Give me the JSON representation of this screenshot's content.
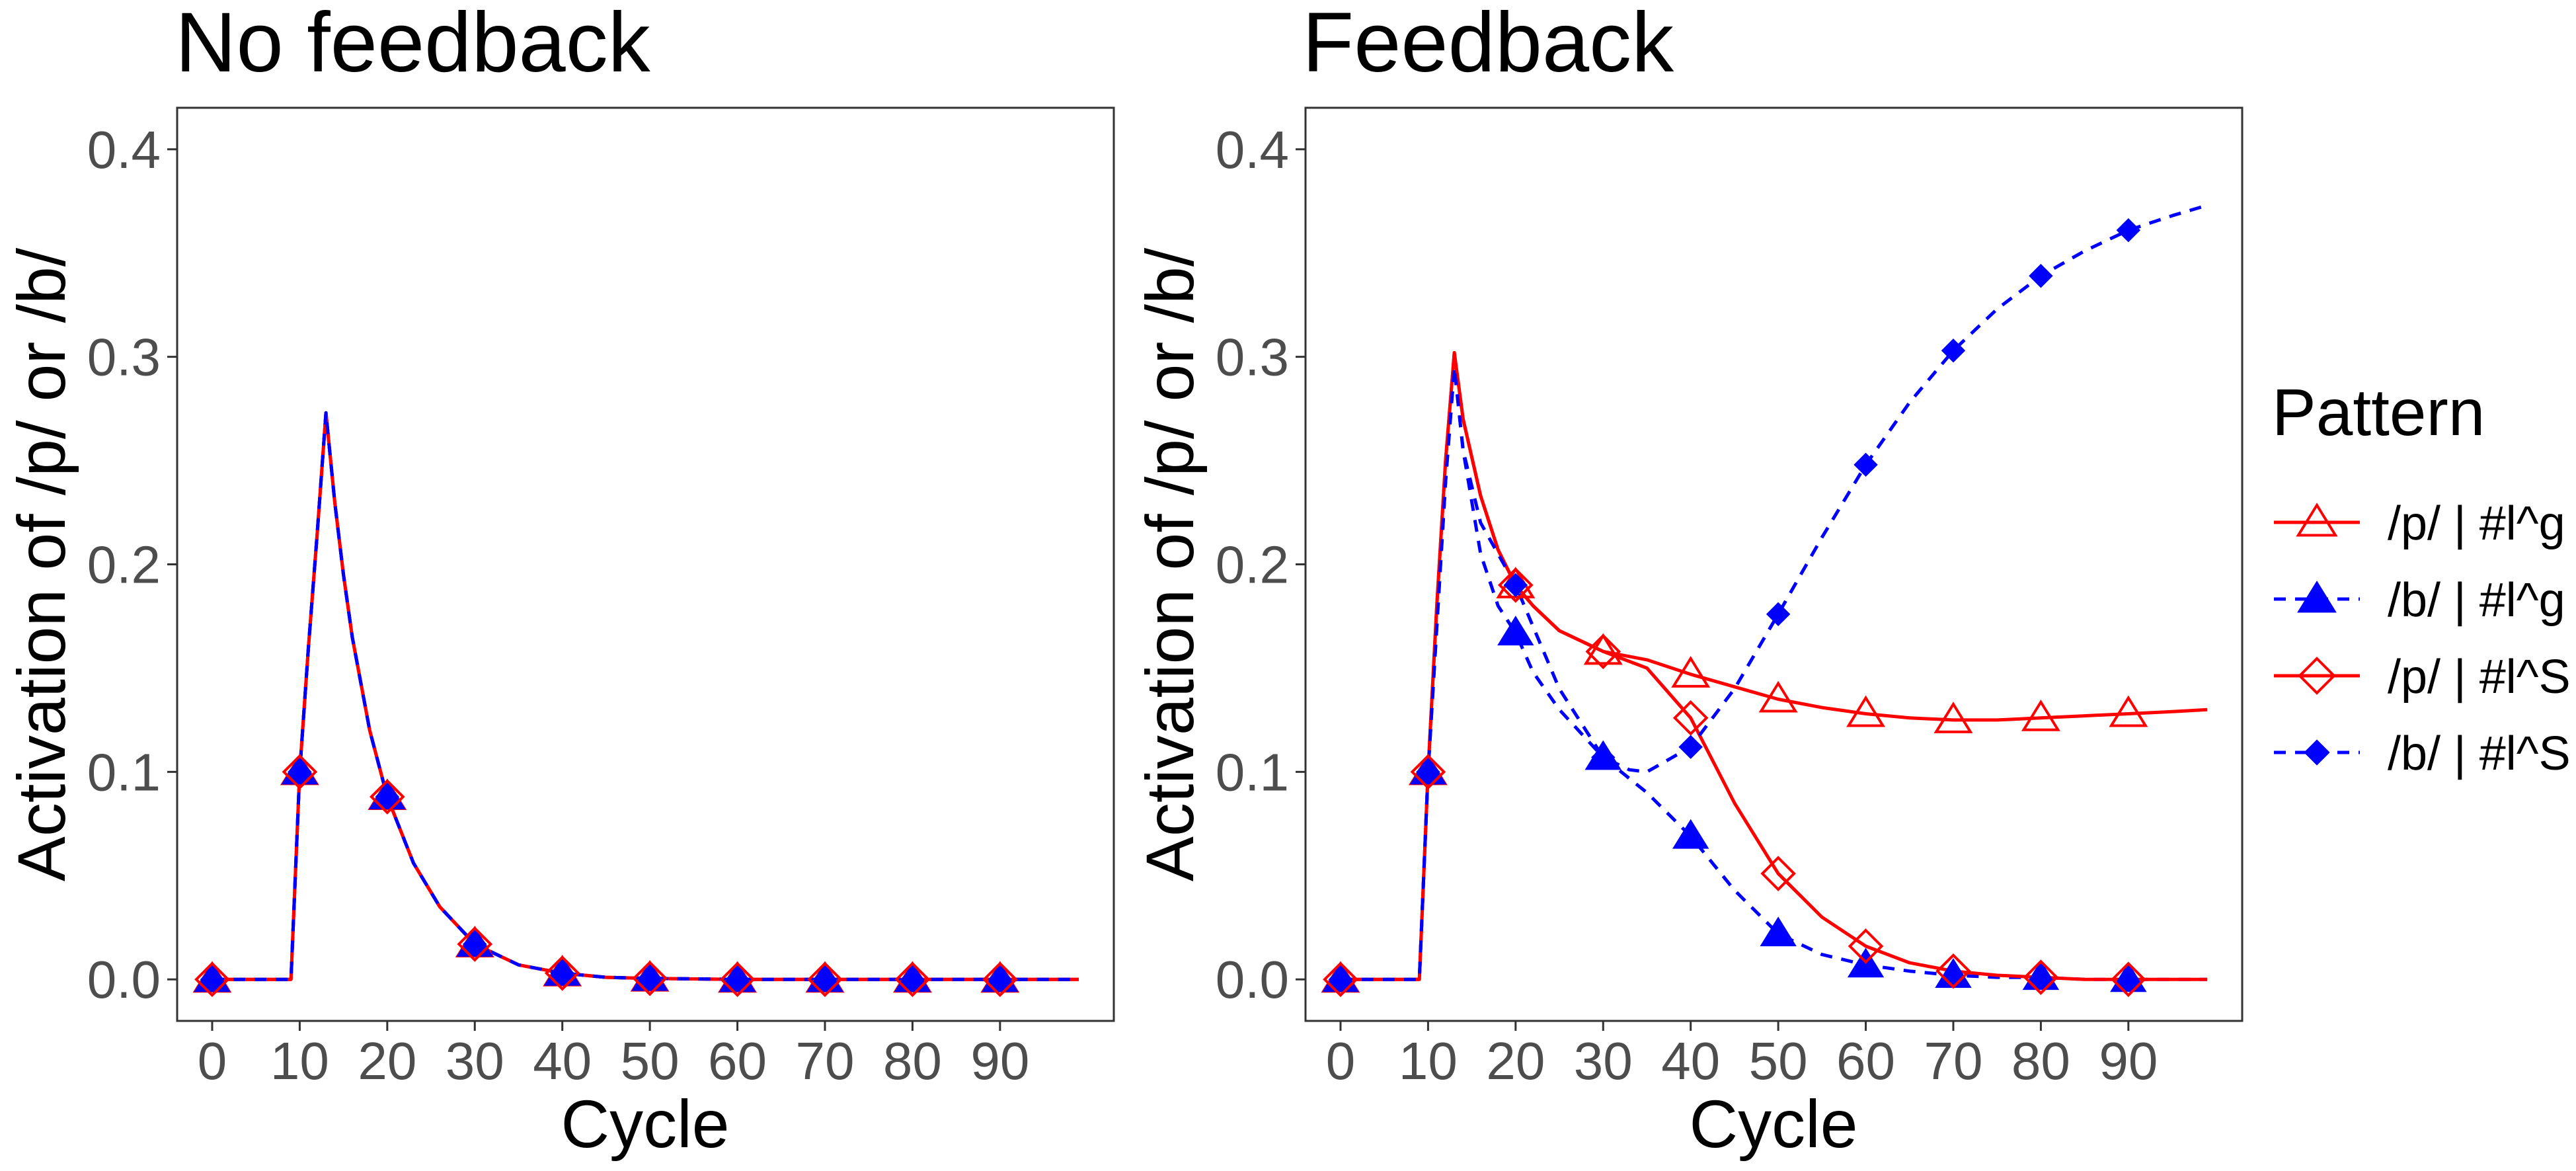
{
  "figure": {
    "legend": {
      "title": "Pattern",
      "entries": [
        {
          "label": "/p/ | #l^g",
          "color": "#ff0000",
          "shape": "triangle-open",
          "line": "solid"
        },
        {
          "label": "/b/ | #l^g",
          "color": "#0000ff",
          "shape": "triangle-filled",
          "line": "dashed"
        },
        {
          "label": "/p/ | #l^S",
          "color": "#ff0000",
          "shape": "diamond-open",
          "line": "solid"
        },
        {
          "label": "/b/ | #l^S",
          "color": "#0000ff",
          "shape": "diamond-filled",
          "line": "dashed"
        }
      ]
    }
  },
  "chart_data": [
    {
      "type": "line",
      "title": "No feedback",
      "xlabel": "Cycle",
      "ylabel": "Activation of /p/ or /b/",
      "xlim": [
        -4,
        103
      ],
      "ylim": [
        -0.02,
        0.42
      ],
      "xticks": [
        "0",
        "10",
        "20",
        "30",
        "40",
        "50",
        "60",
        "70",
        "80",
        "90"
      ],
      "yticks": [
        "0.0",
        "0.1",
        "0.2",
        "0.3",
        "0.4"
      ],
      "grid": false,
      "series": [
        {
          "name": "/p/ | #l^g",
          "color": "#ff0000",
          "line": "solid",
          "x": [
            0,
            9,
            10,
            11,
            12,
            13,
            14,
            15,
            16,
            18,
            20,
            23,
            26,
            30,
            35,
            40,
            45,
            50,
            60,
            70,
            80,
            90,
            99
          ],
          "y": [
            0,
            0,
            0.1,
            0.16,
            0.215,
            0.273,
            0.23,
            0.195,
            0.165,
            0.12,
            0.088,
            0.056,
            0.035,
            0.017,
            0.007,
            0.003,
            0.001,
            0.0005,
            0,
            0,
            0,
            0,
            0
          ]
        },
        {
          "name": "/b/ | #l^g",
          "color": "#0000ff",
          "line": "dashed",
          "x": [
            0,
            9,
            10,
            11,
            12,
            13,
            14,
            15,
            16,
            18,
            20,
            23,
            26,
            30,
            35,
            40,
            45,
            50,
            60,
            70,
            80,
            90,
            99
          ],
          "y": [
            0,
            0,
            0.1,
            0.16,
            0.215,
            0.273,
            0.23,
            0.195,
            0.165,
            0.12,
            0.088,
            0.056,
            0.035,
            0.017,
            0.007,
            0.003,
            0.001,
            0.0005,
            0,
            0,
            0,
            0,
            0
          ]
        },
        {
          "name": "/p/ | #l^S",
          "color": "#ff0000",
          "line": "solid",
          "x": [
            0,
            9,
            10,
            11,
            12,
            13,
            14,
            15,
            16,
            18,
            20,
            23,
            26,
            30,
            35,
            40,
            45,
            50,
            60,
            70,
            80,
            90,
            99
          ],
          "y": [
            0,
            0,
            0.1,
            0.16,
            0.215,
            0.273,
            0.23,
            0.195,
            0.165,
            0.12,
            0.088,
            0.056,
            0.035,
            0.017,
            0.007,
            0.003,
            0.001,
            0.0005,
            0,
            0,
            0,
            0,
            0
          ]
        },
        {
          "name": "/b/ | #l^S",
          "color": "#0000ff",
          "line": "dashed",
          "x": [
            0,
            9,
            10,
            11,
            12,
            13,
            14,
            15,
            16,
            18,
            20,
            23,
            26,
            30,
            35,
            40,
            45,
            50,
            60,
            70,
            80,
            90,
            99
          ],
          "y": [
            0,
            0,
            0.1,
            0.16,
            0.215,
            0.273,
            0.23,
            0.195,
            0.165,
            0.12,
            0.088,
            0.056,
            0.035,
            0.017,
            0.007,
            0.003,
            0.001,
            0.0005,
            0,
            0,
            0,
            0,
            0
          ]
        }
      ]
    },
    {
      "type": "line",
      "title": "Feedback",
      "xlabel": "Cycle",
      "ylabel": "Activation of /p/ or /b/",
      "xlim": [
        -4,
        103
      ],
      "ylim": [
        -0.02,
        0.42
      ],
      "xticks": [
        "0",
        "10",
        "20",
        "30",
        "40",
        "50",
        "60",
        "70",
        "80",
        "90"
      ],
      "yticks": [
        "0.0",
        "0.1",
        "0.2",
        "0.3",
        "0.4"
      ],
      "grid": false,
      "series": [
        {
          "name": "/p/ | #l^g",
          "color": "#ff0000",
          "line": "solid",
          "x": [
            0,
            9,
            10,
            11,
            12,
            13,
            14,
            16,
            18,
            20,
            22,
            25,
            30,
            35,
            40,
            45,
            50,
            55,
            60,
            65,
            70,
            75,
            80,
            85,
            90,
            95,
            99
          ],
          "y": [
            0,
            0,
            0.1,
            0.18,
            0.25,
            0.302,
            0.27,
            0.233,
            0.207,
            0.19,
            0.18,
            0.168,
            0.158,
            0.154,
            0.147,
            0.141,
            0.135,
            0.131,
            0.128,
            0.126,
            0.125,
            0.125,
            0.126,
            0.127,
            0.128,
            0.129,
            0.13
          ]
        },
        {
          "name": "/b/ | #l^g",
          "color": "#0000ff",
          "line": "dashed",
          "x": [
            0,
            9,
            10,
            11,
            12,
            13,
            14,
            16,
            18,
            20,
            22,
            25,
            30,
            35,
            40,
            45,
            50,
            55,
            60,
            65,
            70,
            75,
            80,
            85,
            90,
            95,
            99
          ],
          "y": [
            0,
            0,
            0.1,
            0.17,
            0.24,
            0.295,
            0.255,
            0.205,
            0.18,
            0.167,
            0.148,
            0.13,
            0.107,
            0.09,
            0.069,
            0.043,
            0.022,
            0.012,
            0.007,
            0.004,
            0.002,
            0.001,
            0.001,
            0,
            0,
            0,
            0
          ]
        },
        {
          "name": "/p/ | #l^S",
          "color": "#ff0000",
          "line": "solid",
          "x": [
            0,
            9,
            10,
            11,
            12,
            13,
            14,
            16,
            18,
            20,
            22,
            25,
            30,
            35,
            40,
            45,
            50,
            55,
            60,
            65,
            70,
            75,
            80,
            85,
            90,
            95,
            99
          ],
          "y": [
            0,
            0,
            0.1,
            0.18,
            0.25,
            0.302,
            0.27,
            0.233,
            0.207,
            0.19,
            0.18,
            0.168,
            0.158,
            0.15,
            0.126,
            0.085,
            0.051,
            0.03,
            0.016,
            0.008,
            0.004,
            0.002,
            0.001,
            0,
            0,
            0,
            0
          ]
        },
        {
          "name": "/b/ | #l^S",
          "color": "#0000ff",
          "line": "dashed",
          "x": [
            0,
            9,
            10,
            11,
            12,
            13,
            14,
            16,
            18,
            20,
            22,
            25,
            30,
            33,
            35,
            40,
            45,
            50,
            55,
            60,
            65,
            70,
            75,
            80,
            85,
            90,
            95,
            99
          ],
          "y": [
            0,
            0,
            0.1,
            0.17,
            0.24,
            0.295,
            0.255,
            0.22,
            0.205,
            0.19,
            0.17,
            0.14,
            0.107,
            0.101,
            0.1,
            0.112,
            0.14,
            0.176,
            0.213,
            0.248,
            0.278,
            0.303,
            0.323,
            0.339,
            0.351,
            0.361,
            0.368,
            0.373
          ]
        }
      ]
    }
  ]
}
